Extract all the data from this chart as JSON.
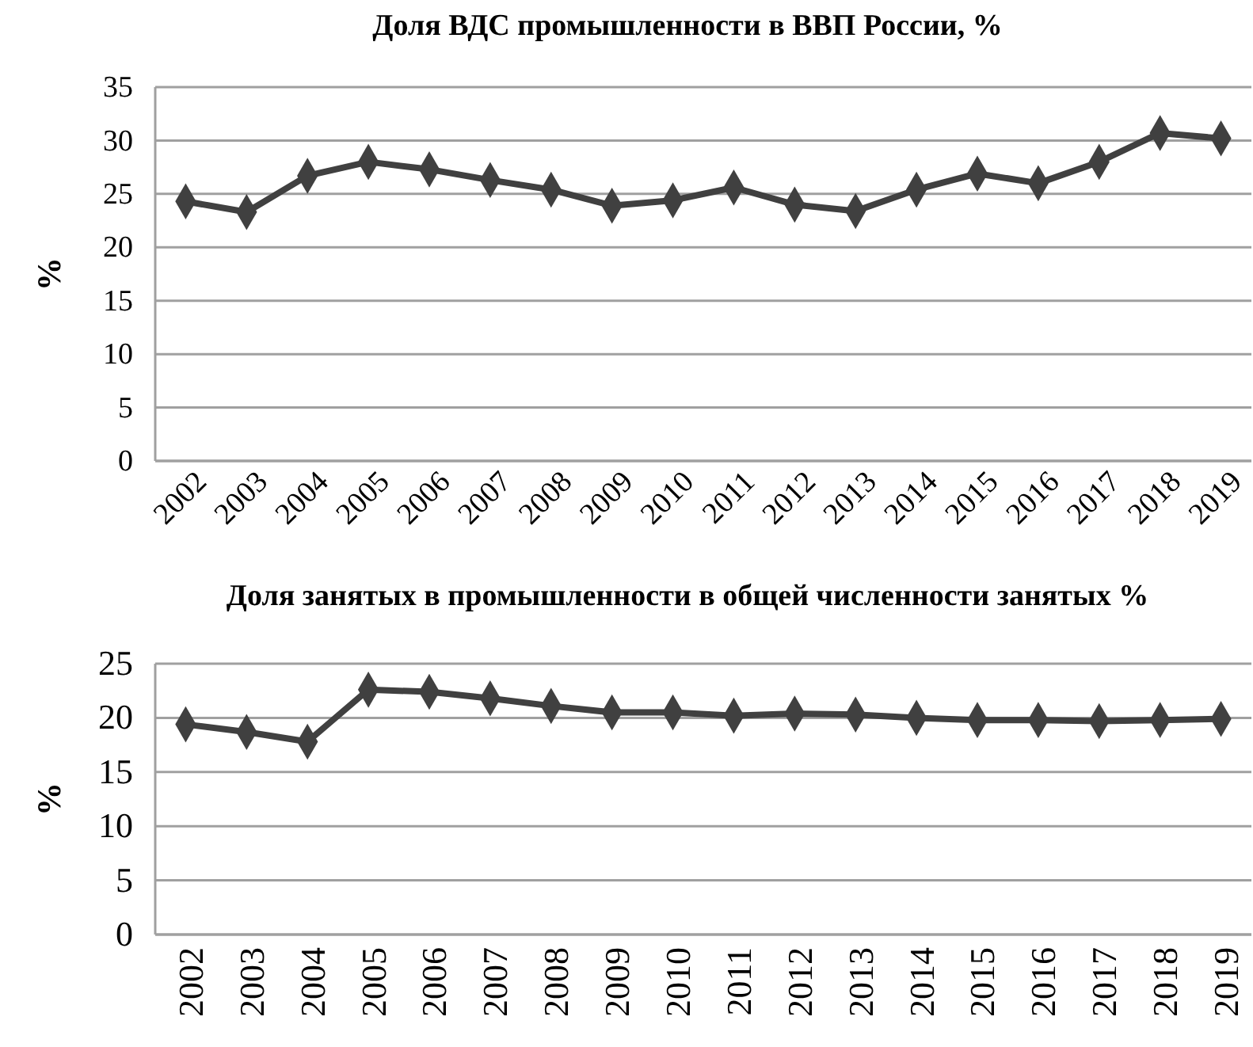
{
  "chart_data": [
    {
      "type": "line",
      "title": "Доля ВДС промышленности в ВВП России, %",
      "ylabel": "%",
      "categories": [
        "2002",
        "2003",
        "2004",
        "2005",
        "2006",
        "2007",
        "2008",
        "2009",
        "2010",
        "2011",
        "2012",
        "2013",
        "2014",
        "2015",
        "2016",
        "2017",
        "2018",
        "2019"
      ],
      "series": [
        {
          "color": "#404040",
          "values": [
            24.3,
            23.3,
            26.7,
            28.0,
            27.3,
            26.3,
            25.4,
            23.9,
            24.4,
            25.6,
            24.0,
            23.4,
            25.4,
            26.9,
            26.0,
            28.0,
            30.7,
            30.2
          ]
        }
      ],
      "ylim": [
        0,
        35
      ],
      "yticks": [
        0,
        5,
        10,
        15,
        20,
        25,
        30,
        35
      ],
      "grid": "y",
      "marker": "diamond"
    },
    {
      "type": "line",
      "title": "Доля занятых в промышленности в общей численности занятых %",
      "ylabel": "%",
      "categories": [
        "2002",
        "2003",
        "2004",
        "2005",
        "2006",
        "2007",
        "2008",
        "2009",
        "2010",
        "2011",
        "2012",
        "2013",
        "2014",
        "2015",
        "2016",
        "2017",
        "2018",
        "2019"
      ],
      "series": [
        {
          "color": "#404040",
          "values": [
            19.4,
            18.7,
            17.8,
            22.6,
            22.4,
            21.8,
            21.1,
            20.5,
            20.5,
            20.2,
            20.4,
            20.3,
            20.0,
            19.8,
            19.8,
            19.7,
            19.8,
            19.9
          ]
        }
      ],
      "ylim": [
        0,
        25
      ],
      "yticks": [
        0,
        5,
        10,
        15,
        20,
        25
      ],
      "grid": "y",
      "marker": "diamond"
    }
  ]
}
